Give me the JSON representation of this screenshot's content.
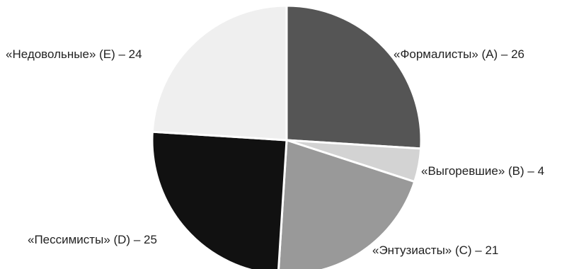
{
  "chart_data": {
    "type": "pie",
    "title": "",
    "slices": [
      {
        "label": "«Формалисты» (А) – 26",
        "name": "Формалисты",
        "code": "А",
        "value": 26,
        "color": "#555555"
      },
      {
        "label": "«Выгоревшие» (В) – 4",
        "name": "Выгоревшие",
        "code": "В",
        "value": 4,
        "color": "#d3d3d3"
      },
      {
        "label": "«Энтузиасты» (С) – 21",
        "name": "Энтузиасты",
        "code": "С",
        "value": 21,
        "color": "#999999"
      },
      {
        "label": "«Пессимисты» (D) – 25",
        "name": "Пессимисты",
        "code": "D",
        "value": 25,
        "color": "#111111"
      },
      {
        "label": "«Недовольные» (E) – 24",
        "name": "Недовольные",
        "code": "E",
        "value": 24,
        "color": "#efefef"
      }
    ],
    "start_angle_deg": 0,
    "direction": "clockwise",
    "legend": "none"
  }
}
